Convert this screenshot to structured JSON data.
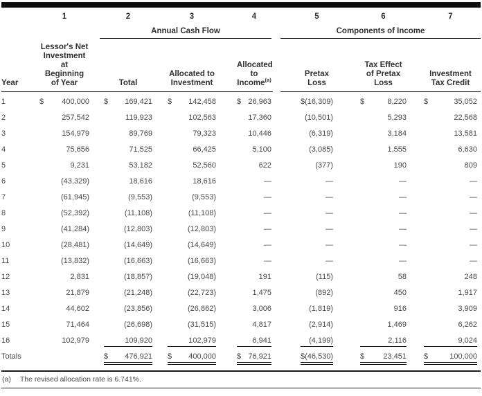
{
  "table": {
    "column_numbers": [
      "1",
      "2",
      "3",
      "4",
      "5",
      "6",
      "7"
    ],
    "group_headers": {
      "annual_cash_flow": "Annual Cash Flow",
      "components_of_income": "Components of Income"
    },
    "column_headers": {
      "year": "Year",
      "col1_lines": [
        "Lessor's Net",
        "Investment",
        "at",
        "Beginning",
        "of Year"
      ],
      "col2": "Total",
      "col3_lines": [
        "Allocated to",
        "Investment"
      ],
      "col4_line1": "Allocated to",
      "col4_line2": "Income",
      "col4_superscript": "(a)",
      "col5": "Pretax Loss",
      "col6_lines": [
        "Tax Effect",
        "of Pretax",
        "Loss"
      ],
      "col7_lines": [
        "Investment",
        "Tax Credit"
      ]
    },
    "rows": [
      {
        "year": "1",
        "cells": [
          {
            "cur": "$",
            "val": "400,000"
          },
          {
            "cur": "$",
            "val": "169,421"
          },
          {
            "cur": "$",
            "val": "142,458"
          },
          {
            "cur": "$",
            "val": "26,963"
          },
          {
            "cur": "$",
            "val": "(16,309)"
          },
          {
            "cur": "$",
            "val": "8,220"
          },
          {
            "cur": "$",
            "val": "35,052"
          }
        ]
      },
      {
        "year": "2",
        "cells": [
          {
            "cur": "",
            "val": "257,542"
          },
          {
            "cur": "",
            "val": "119,923"
          },
          {
            "cur": "",
            "val": "102,563"
          },
          {
            "cur": "",
            "val": "17,360"
          },
          {
            "cur": "",
            "val": "(10,501)"
          },
          {
            "cur": "",
            "val": "5,293"
          },
          {
            "cur": "",
            "val": "22,568"
          }
        ]
      },
      {
        "year": "3",
        "cells": [
          {
            "cur": "",
            "val": "154,979"
          },
          {
            "cur": "",
            "val": "89,769"
          },
          {
            "cur": "",
            "val": "79,323"
          },
          {
            "cur": "",
            "val": "10,446"
          },
          {
            "cur": "",
            "val": "(6,319)"
          },
          {
            "cur": "",
            "val": "3,184"
          },
          {
            "cur": "",
            "val": "13,581"
          }
        ]
      },
      {
        "year": "4",
        "cells": [
          {
            "cur": "",
            "val": "75,656"
          },
          {
            "cur": "",
            "val": "71,525"
          },
          {
            "cur": "",
            "val": "66,425"
          },
          {
            "cur": "",
            "val": "5,100"
          },
          {
            "cur": "",
            "val": "(3,085)"
          },
          {
            "cur": "",
            "val": "1,555"
          },
          {
            "cur": "",
            "val": "6,630"
          }
        ]
      },
      {
        "year": "5",
        "cells": [
          {
            "cur": "",
            "val": "9,231"
          },
          {
            "cur": "",
            "val": "53,182"
          },
          {
            "cur": "",
            "val": "52,560"
          },
          {
            "cur": "",
            "val": "622"
          },
          {
            "cur": "",
            "val": "(377)"
          },
          {
            "cur": "",
            "val": "190"
          },
          {
            "cur": "",
            "val": "809"
          }
        ]
      },
      {
        "year": "6",
        "cells": [
          {
            "cur": "",
            "val": "(43,329)"
          },
          {
            "cur": "",
            "val": "18,616"
          },
          {
            "cur": "",
            "val": "18,616"
          },
          {
            "cur": "",
            "val": "—"
          },
          {
            "cur": "",
            "val": "—"
          },
          {
            "cur": "",
            "val": "—"
          },
          {
            "cur": "",
            "val": "—"
          }
        ]
      },
      {
        "year": "7",
        "cells": [
          {
            "cur": "",
            "val": "(61,945)"
          },
          {
            "cur": "",
            "val": "(9,553)"
          },
          {
            "cur": "",
            "val": "(9,553)"
          },
          {
            "cur": "",
            "val": "—"
          },
          {
            "cur": "",
            "val": "—"
          },
          {
            "cur": "",
            "val": "—"
          },
          {
            "cur": "",
            "val": "—"
          }
        ]
      },
      {
        "year": "8",
        "cells": [
          {
            "cur": "",
            "val": "(52,392)"
          },
          {
            "cur": "",
            "val": "(11,108)"
          },
          {
            "cur": "",
            "val": "(11,108)"
          },
          {
            "cur": "",
            "val": "—"
          },
          {
            "cur": "",
            "val": "—"
          },
          {
            "cur": "",
            "val": "—"
          },
          {
            "cur": "",
            "val": "—"
          }
        ]
      },
      {
        "year": "9",
        "cells": [
          {
            "cur": "",
            "val": "(41,284)"
          },
          {
            "cur": "",
            "val": "(12,803)"
          },
          {
            "cur": "",
            "val": "(12,803)"
          },
          {
            "cur": "",
            "val": "—"
          },
          {
            "cur": "",
            "val": "—"
          },
          {
            "cur": "",
            "val": "—"
          },
          {
            "cur": "",
            "val": "—"
          }
        ]
      },
      {
        "year": "10",
        "cells": [
          {
            "cur": "",
            "val": "(28,481)"
          },
          {
            "cur": "",
            "val": "(14,649)"
          },
          {
            "cur": "",
            "val": "(14,649)"
          },
          {
            "cur": "",
            "val": "—"
          },
          {
            "cur": "",
            "val": "—"
          },
          {
            "cur": "",
            "val": "—"
          },
          {
            "cur": "",
            "val": "—"
          }
        ]
      },
      {
        "year": "11",
        "cells": [
          {
            "cur": "",
            "val": "(13,832)"
          },
          {
            "cur": "",
            "val": "(16,663)"
          },
          {
            "cur": "",
            "val": "(16,663)"
          },
          {
            "cur": "",
            "val": "—"
          },
          {
            "cur": "",
            "val": "—"
          },
          {
            "cur": "",
            "val": "—"
          },
          {
            "cur": "",
            "val": "—"
          }
        ]
      },
      {
        "year": "12",
        "cells": [
          {
            "cur": "",
            "val": "2,831"
          },
          {
            "cur": "",
            "val": "(18,857)"
          },
          {
            "cur": "",
            "val": "(19,048)"
          },
          {
            "cur": "",
            "val": "191"
          },
          {
            "cur": "",
            "val": "(115)"
          },
          {
            "cur": "",
            "val": "58"
          },
          {
            "cur": "",
            "val": "248"
          }
        ]
      },
      {
        "year": "13",
        "cells": [
          {
            "cur": "",
            "val": "21,879"
          },
          {
            "cur": "",
            "val": "(21,248)"
          },
          {
            "cur": "",
            "val": "(22,723)"
          },
          {
            "cur": "",
            "val": "1,475"
          },
          {
            "cur": "",
            "val": "(892)"
          },
          {
            "cur": "",
            "val": "450"
          },
          {
            "cur": "",
            "val": "1,917"
          }
        ]
      },
      {
        "year": "14",
        "cells": [
          {
            "cur": "",
            "val": "44,602"
          },
          {
            "cur": "",
            "val": "(23,856)"
          },
          {
            "cur": "",
            "val": "(26,862)"
          },
          {
            "cur": "",
            "val": "3,006"
          },
          {
            "cur": "",
            "val": "(1,819)"
          },
          {
            "cur": "",
            "val": "916"
          },
          {
            "cur": "",
            "val": "3,909"
          }
        ]
      },
      {
        "year": "15",
        "cells": [
          {
            "cur": "",
            "val": "71,464"
          },
          {
            "cur": "",
            "val": "(26,698)"
          },
          {
            "cur": "",
            "val": "(31,515)"
          },
          {
            "cur": "",
            "val": "4,817"
          },
          {
            "cur": "",
            "val": "(2,914)"
          },
          {
            "cur": "",
            "val": "1,469"
          },
          {
            "cur": "",
            "val": "6,262"
          }
        ]
      },
      {
        "year": "16",
        "cells": [
          {
            "cur": "",
            "val": "102,979"
          },
          {
            "cur": "",
            "val": "109,920",
            "line": "single"
          },
          {
            "cur": "",
            "val": "102,979",
            "line": "single"
          },
          {
            "cur": "",
            "val": "6,941",
            "line": "single"
          },
          {
            "cur": "",
            "val": "(4,199)",
            "line": "single"
          },
          {
            "cur": "",
            "val": "2,116",
            "line": "single"
          },
          {
            "cur": "",
            "val": "9,024",
            "line": "single"
          }
        ]
      },
      {
        "year": "Totals",
        "cells": [
          {
            "cur": "",
            "val": ""
          },
          {
            "cur": "$",
            "val": "476,921",
            "line": "double"
          },
          {
            "cur": "$",
            "val": "400,000",
            "line": "double"
          },
          {
            "cur": "$",
            "val": "76,921",
            "line": "double"
          },
          {
            "cur": "$",
            "val": "(46,530)",
            "line": "double"
          },
          {
            "cur": "$",
            "val": "23,451",
            "line": "double"
          },
          {
            "cur": "$",
            "val": "100,000",
            "line": "double"
          }
        ]
      }
    ]
  },
  "footnote": {
    "marker": "(a)",
    "text": "The revised allocation rate is 6.741%."
  },
  "colors": {
    "ink": "#46484b",
    "heading": "#2e3033",
    "rule": "#161616",
    "background": "#ffffff"
  }
}
